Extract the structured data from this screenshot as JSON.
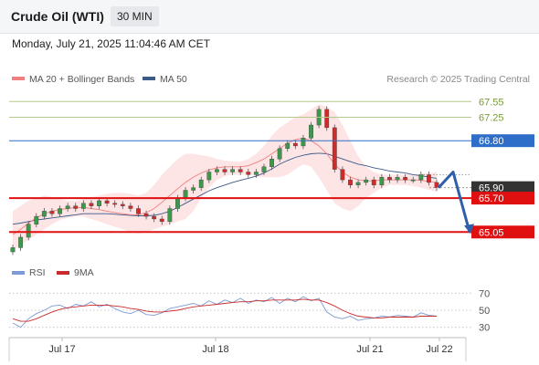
{
  "header": {
    "title": "Crude Oil (WTI)",
    "timeframe": "30 MIN"
  },
  "datetime": "Monday, July 21, 2025 11:04:46 AM CET",
  "colors": {
    "ma20": "#f08080",
    "bollinger_fill": "#fde0e0",
    "ma50": "#3b5a8a",
    "resistance_green": "#b5c98a",
    "blue_level": "#2f6ec8",
    "red_level": "#e01010",
    "current_price": "#333333",
    "arrow": "#2f5fa8",
    "rsi": "#7b9bd6",
    "rsi_ma": "#cc2a2a"
  },
  "chart_data": [
    {
      "type": "line",
      "title": "",
      "legend": [
        {
          "name": "MA 20 + Bollinger Bands",
          "color": "#f08080"
        },
        {
          "name": "MA 50",
          "color": "#3b5a8a"
        }
      ],
      "source": "Research © 2025 Trading Central",
      "x_ticks": [
        "Jul 17",
        "Jul 18",
        "Jul 21",
        "Jul 22"
      ],
      "y_range": [
        64.6,
        67.8
      ],
      "levels": [
        {
          "label": "67.55",
          "value": 67.55,
          "style": "green"
        },
        {
          "label": "67.25",
          "value": 67.25,
          "style": "green"
        },
        {
          "label": "66.80",
          "value": 66.8,
          "style": "blue"
        },
        {
          "label": "65.90",
          "value": 65.9,
          "style": "current"
        },
        {
          "label": "65.70",
          "value": 65.7,
          "style": "red"
        },
        {
          "label": "65.05",
          "value": 65.05,
          "style": "red"
        }
      ],
      "price_series": [
        64.75,
        64.95,
        65.2,
        65.35,
        65.45,
        65.4,
        65.5,
        65.55,
        65.5,
        65.6,
        65.55,
        65.65,
        65.6,
        65.58,
        65.55,
        65.5,
        65.4,
        65.35,
        65.3,
        65.25,
        65.5,
        65.7,
        65.85,
        65.9,
        66.05,
        66.2,
        66.25,
        66.2,
        66.25,
        66.2,
        66.15,
        66.2,
        66.3,
        66.45,
        66.65,
        66.75,
        66.7,
        66.85,
        67.1,
        67.4,
        67.05,
        66.25,
        66.05,
        65.95,
        66.0,
        66.05,
        65.95,
        66.1,
        66.05,
        66.1,
        66.05,
        66.05,
        66.15,
        66.0,
        65.9
      ],
      "ma20_series": [
        65.0,
        65.1,
        65.22,
        65.32,
        65.4,
        65.45,
        65.48,
        65.5,
        65.52,
        65.52,
        65.5,
        65.48,
        65.45,
        65.42,
        65.4,
        65.38,
        65.38,
        65.42,
        65.5,
        65.62,
        65.75,
        65.88,
        66.0,
        66.1,
        66.18,
        66.24,
        66.28,
        66.3,
        66.3,
        66.3,
        66.32,
        66.38,
        66.45,
        66.55,
        66.65,
        66.75,
        66.82,
        66.85,
        66.8,
        66.7,
        66.55,
        66.35,
        66.2,
        66.1,
        66.05,
        66.03,
        66.03,
        66.05,
        66.05,
        66.05,
        66.05,
        66.05,
        66.04,
        66.02,
        66.0
      ],
      "bb_upper": [
        65.45,
        65.55,
        65.65,
        65.7,
        65.75,
        65.72,
        65.68,
        65.65,
        65.65,
        65.68,
        65.72,
        65.75,
        65.78,
        65.8,
        65.8,
        65.78,
        65.75,
        65.8,
        65.95,
        66.15,
        66.3,
        66.45,
        66.55,
        66.55,
        66.52,
        66.5,
        66.45,
        66.42,
        66.4,
        66.4,
        66.45,
        66.55,
        66.7,
        66.9,
        67.05,
        67.15,
        67.25,
        67.3,
        67.4,
        67.5,
        67.45,
        67.35,
        67.1,
        66.8,
        66.5,
        66.3,
        66.2,
        66.15,
        66.15,
        66.15,
        66.15,
        66.15,
        66.17,
        66.18,
        66.2
      ],
      "bb_lower": [
        64.7,
        64.8,
        64.9,
        65.0,
        65.1,
        65.2,
        65.28,
        65.32,
        65.35,
        65.35,
        65.3,
        65.25,
        65.2,
        65.15,
        65.1,
        65.05,
        65.02,
        65.05,
        65.1,
        65.15,
        65.2,
        65.25,
        65.3,
        65.45,
        65.7,
        65.9,
        66.05,
        66.12,
        66.15,
        66.15,
        66.15,
        66.12,
        66.1,
        66.1,
        66.1,
        66.15,
        66.25,
        66.35,
        66.3,
        66.1,
        65.85,
        65.6,
        65.5,
        65.45,
        65.55,
        65.7,
        65.8,
        65.9,
        65.95,
        65.95,
        65.95,
        65.93,
        65.9,
        65.86,
        65.82
      ],
      "ma50_series": [
        65.2,
        65.22,
        65.25,
        65.28,
        65.3,
        65.32,
        65.34,
        65.36,
        65.38,
        65.4,
        65.4,
        65.4,
        65.4,
        65.39,
        65.38,
        65.37,
        65.36,
        65.36,
        65.37,
        65.4,
        65.45,
        65.52,
        65.6,
        65.68,
        65.76,
        65.84,
        65.9,
        65.95,
        66.0,
        66.04,
        66.08,
        66.12,
        66.18,
        66.26,
        66.35,
        66.42,
        66.48,
        66.52,
        66.55,
        66.56,
        66.55,
        66.5,
        66.45,
        66.4,
        66.35,
        66.32,
        66.28,
        66.25,
        66.22,
        66.2,
        66.18,
        66.15,
        66.13,
        66.1,
        66.08
      ],
      "forecast_path": [
        65.9,
        66.2,
        65.05
      ]
    },
    {
      "type": "line",
      "title": "",
      "legend": [
        {
          "name": "RSI",
          "color": "#7b9bd6"
        },
        {
          "name": "9MA",
          "color": "#cc2a2a"
        }
      ],
      "y_range": [
        20,
        80
      ],
      "y_ticks": [
        70,
        50,
        30
      ],
      "rsi_series": [
        35,
        30,
        40,
        46,
        50,
        55,
        56,
        52,
        57,
        55,
        60,
        54,
        57,
        52,
        48,
        46,
        50,
        45,
        44,
        47,
        52,
        54,
        56,
        58,
        55,
        61,
        57,
        62,
        59,
        64,
        58,
        62,
        60,
        65,
        58,
        64,
        60,
        66,
        61,
        64,
        48,
        42,
        40,
        43,
        38,
        40,
        41,
        43,
        42,
        44,
        43,
        42,
        47,
        44,
        43
      ],
      "rsi_ma_series": [
        40,
        37,
        37,
        40,
        44,
        48,
        51,
        53,
        54,
        55,
        56,
        56,
        56,
        55,
        54,
        52,
        51,
        49,
        48,
        48,
        49,
        50,
        52,
        54,
        55,
        56,
        57,
        58,
        59,
        60,
        60,
        61,
        61,
        62,
        62,
        62,
        62,
        63,
        62,
        62,
        59,
        55,
        50,
        46,
        43,
        42,
        41,
        41,
        42,
        42,
        42,
        42,
        43,
        43,
        43
      ]
    }
  ]
}
